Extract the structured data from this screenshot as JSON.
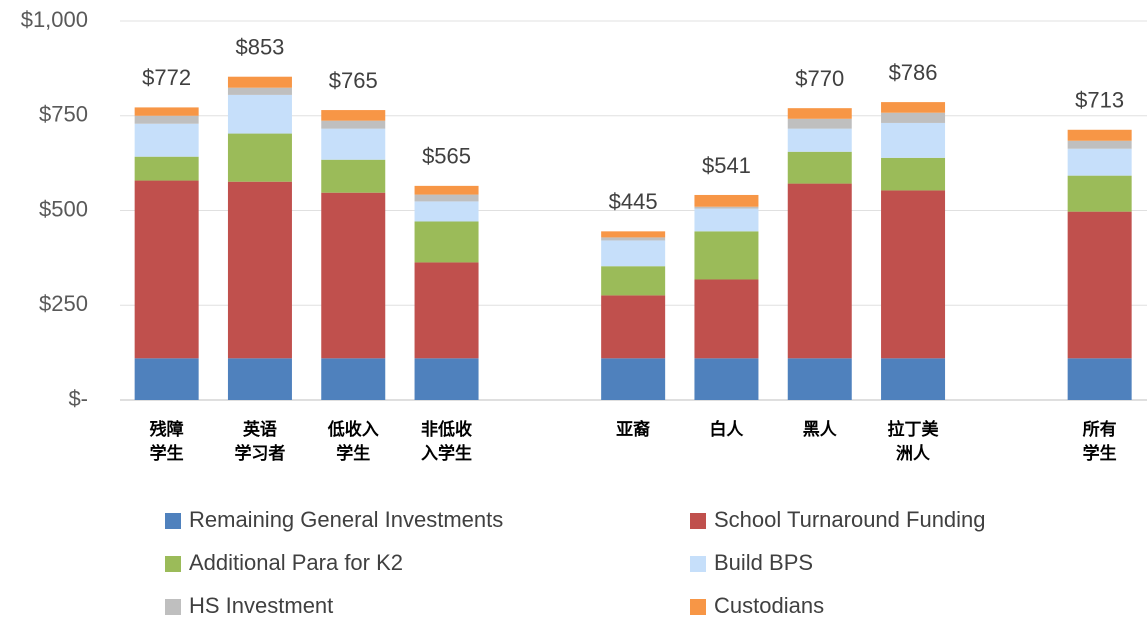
{
  "chart_data": {
    "type": "stacked_bar",
    "categories": [
      "残障\n学生",
      "英语\n学习者",
      "低收入\n学生",
      "非低收\n入学生",
      null,
      "亚裔",
      "白人",
      "黑人",
      "拉丁美\n洲人",
      null,
      "所有\n学生"
    ],
    "series": [
      {
        "name": "Remaining General Investments",
        "color": "#4f81bd",
        "values": [
          110,
          110,
          110,
          110,
          null,
          110,
          110,
          110,
          110,
          null,
          110
        ]
      },
      {
        "name": "School Turnaround Funding",
        "color": "#c0504d",
        "values": [
          469,
          466,
          437,
          253,
          null,
          166,
          208,
          461,
          443,
          null,
          387
        ]
      },
      {
        "name": "Additional Para for K2",
        "color": "#9bbb59",
        "values": [
          63,
          127,
          87,
          108,
          null,
          77,
          127,
          84,
          86,
          null,
          95
        ]
      },
      {
        "name": "Build BPS",
        "color": "#c6dffa",
        "values": [
          87,
          102,
          82,
          53,
          null,
          68,
          60,
          61,
          92,
          null,
          71
        ]
      },
      {
        "name": "HS Investment",
        "color": "#bfbfbf",
        "values": [
          21,
          19,
          21,
          18,
          null,
          8,
          5,
          26,
          27,
          null,
          21
        ]
      },
      {
        "name": "Custodians",
        "color": "#f79646",
        "values": [
          22,
          29,
          28,
          23,
          null,
          16,
          31,
          28,
          28,
          null,
          29
        ]
      }
    ],
    "totals": [
      772,
      853,
      765,
      565,
      null,
      445,
      541,
      770,
      786,
      null,
      713
    ],
    "total_labels": [
      "$772",
      "$853",
      "$765",
      "$565",
      null,
      "$445",
      "$541",
      "$770",
      "$786",
      null,
      "$713"
    ],
    "ylim": [
      0,
      1000
    ],
    "yticks": [
      {
        "value": 0,
        "label": "$-"
      },
      {
        "value": 250,
        "label": "$250"
      },
      {
        "value": 500,
        "label": "$500"
      },
      {
        "value": 750,
        "label": "$750"
      },
      {
        "value": 1000,
        "label": "$1,000"
      }
    ],
    "grid": true
  }
}
